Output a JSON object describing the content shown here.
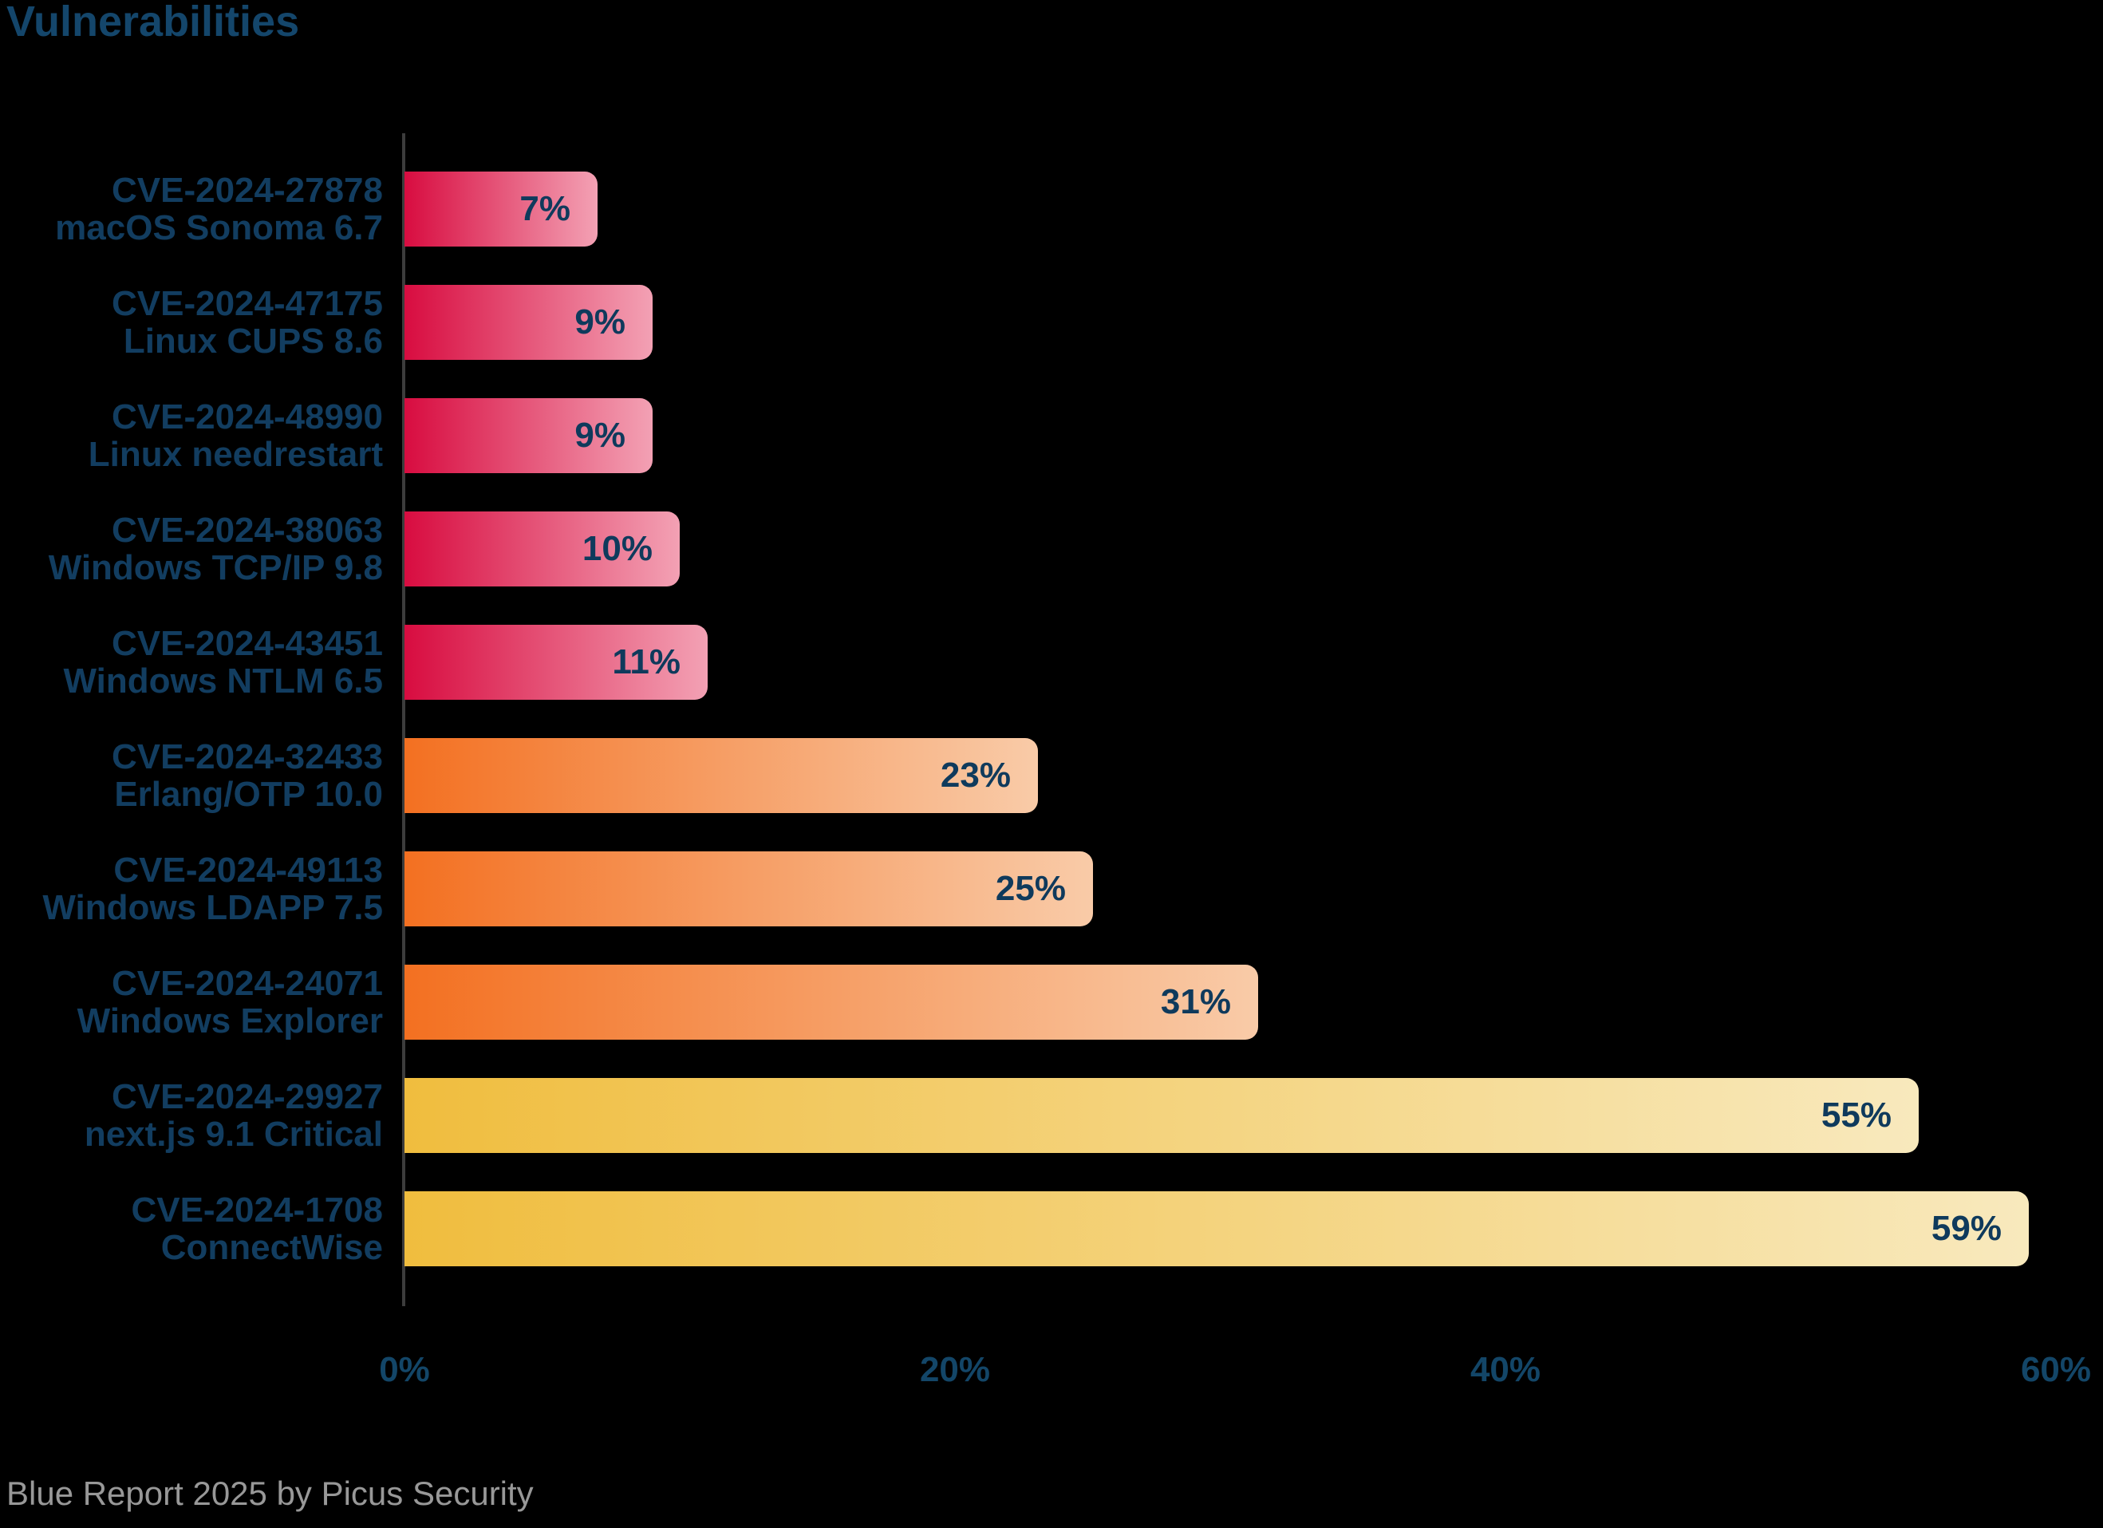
{
  "title": "Vulnerabilities",
  "footer": "Blue Report 2025 by Picus Security",
  "chart_data": {
    "type": "bar",
    "orientation": "horizontal",
    "title": "Vulnerabilities",
    "xlabel": "",
    "ylabel": "",
    "xlim": [
      0,
      60
    ],
    "x_ticks": [
      "0%",
      "20%",
      "40%",
      "60%"
    ],
    "x_tick_values": [
      0,
      20,
      40,
      60
    ],
    "grid": false,
    "legend": "none",
    "categories": [
      [
        "CVE-2024-27878",
        "macOS Sonoma 6.7"
      ],
      [
        "CVE-2024-47175",
        "Linux CUPS 8.6"
      ],
      [
        "CVE-2024-48990",
        "Linux needrestart"
      ],
      [
        "CVE-2024-38063",
        "Windows TCP/IP 9.8"
      ],
      [
        "CVE-2024-43451",
        "Windows NTLM 6.5"
      ],
      [
        "CVE-2024-32433",
        "Erlang/OTP 10.0"
      ],
      [
        "CVE-2024-49113",
        "Windows LDAPP 7.5"
      ],
      [
        "CVE-2024-24071",
        "Windows Explorer"
      ],
      [
        "CVE-2024-29927",
        "next.js 9.1 Critical"
      ],
      [
        "CVE-2024-1708",
        "ConnectWise"
      ]
    ],
    "values": [
      7,
      9,
      9,
      10,
      11,
      23,
      25,
      31,
      55,
      59
    ],
    "value_labels": [
      "7%",
      "9%",
      "9%",
      "10%",
      "11%",
      "23%",
      "25%",
      "31%",
      "55%",
      "59%"
    ],
    "bar_color_groups": [
      "pink",
      "pink",
      "pink",
      "pink",
      "pink",
      "orange",
      "orange",
      "orange",
      "yellow",
      "yellow"
    ],
    "palette": {
      "pink": {
        "start": "#d80c40",
        "end": "#f3a1b4"
      },
      "orange": {
        "start": "#f37021",
        "end": "#f9cba8"
      },
      "yellow": {
        "start": "#f0bd3e",
        "end": "#f8e9bd"
      }
    },
    "colors": {
      "background": "#000000",
      "title_text": "#14466b",
      "label_text": "#123d60",
      "value_text": "#0f3a5c",
      "tick_text": "#134668",
      "axis_line": "#3c3c3c",
      "footer_text": "#989898"
    }
  }
}
